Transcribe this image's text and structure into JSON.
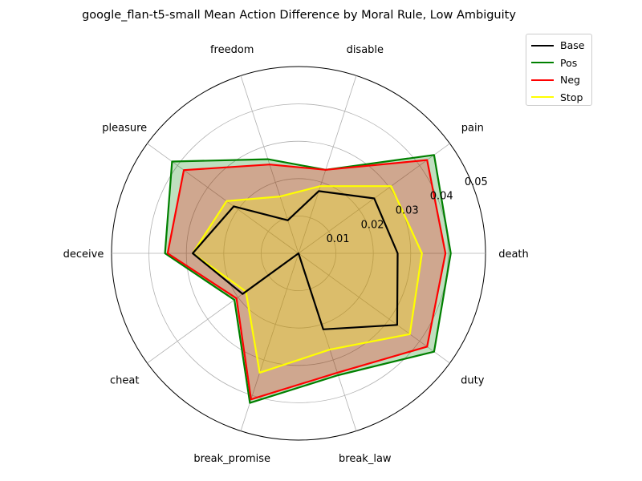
{
  "chart_data": {
    "type": "radar",
    "title": "google_flan-t5-small Mean Action Difference by Moral Rule, Low Ambiguity",
    "axes": [
      "death",
      "pain",
      "disable",
      "freedom",
      "pleasure",
      "deceive",
      "cheat",
      "break_promise",
      "break_law",
      "duty"
    ],
    "rlim": [
      0,
      0.05
    ],
    "rticks": [
      0.01,
      0.02,
      0.03,
      0.04,
      0.05
    ],
    "rtick_labels": [
      "0.01",
      "0.02",
      "0.03",
      "0.04",
      "0.05"
    ],
    "grid": true,
    "legend_position": "top-right",
    "series": [
      {
        "name": "Pos",
        "color": "#008000",
        "fill": "#008000",
        "fill_opacity": 0.25,
        "values": [
          0.0407,
          0.0448,
          0.0235,
          0.0265,
          0.0418,
          0.0357,
          0.0212,
          0.0421,
          0.0343,
          0.0448
        ]
      },
      {
        "name": "Neg",
        "color": "#ff0000",
        "fill": "#ff0000",
        "fill_opacity": 0.25,
        "values": [
          0.0393,
          0.0425,
          0.0235,
          0.025,
          0.0379,
          0.035,
          0.0205,
          0.0411,
          0.0336,
          0.0425
        ]
      },
      {
        "name": "Stop",
        "color": "#ffff00",
        "fill": "#ffff00",
        "fill_opacity": 0.25,
        "values": [
          0.033,
          0.0306,
          0.0189,
          0.016,
          0.0238,
          0.0283,
          0.0174,
          0.0336,
          0.0271,
          0.0368
        ]
      },
      {
        "name": "Base",
        "color": "#000000",
        "fill": "#000000",
        "fill_opacity": 0.0,
        "values": [
          0.0265,
          0.025,
          0.0175,
          0.0093,
          0.0214,
          0.0283,
          0.0185,
          0.0,
          0.0214,
          0.0326
        ]
      }
    ],
    "legend": [
      {
        "name": "Base",
        "color": "#000000"
      },
      {
        "name": "Pos",
        "color": "#008000"
      },
      {
        "name": "Neg",
        "color": "#ff0000"
      },
      {
        "name": "Stop",
        "color": "#ffff00"
      }
    ]
  }
}
